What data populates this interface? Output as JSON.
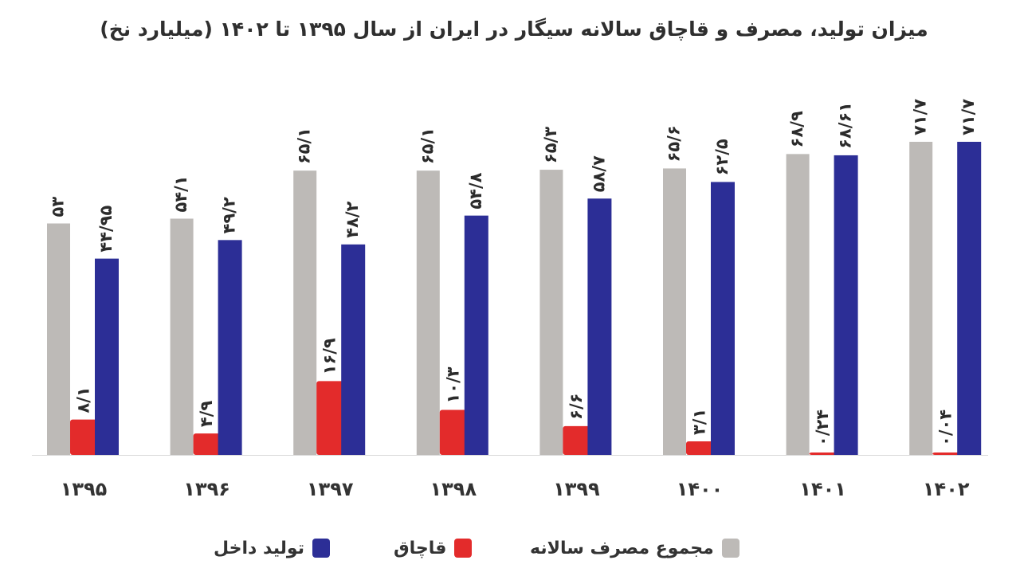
{
  "chart_data": {
    "type": "bar",
    "title": "میزان تولید، مصرف و قاچاق سالانه سیگار در ایران از سال ۱۳۹۵ تا ۱۴۰۲ (میلیارد نخ)",
    "categories": [
      "۱۳۹۵",
      "۱۳۹۶",
      "۱۳۹۷",
      "۱۳۹۸",
      "۱۳۹۹",
      "۱۴۰۰",
      "۱۴۰۱",
      "۱۴۰۲"
    ],
    "series": [
      {
        "name": "مجموع مصرف سالانه",
        "color": "#bdbab7",
        "values": [
          53,
          54.1,
          65.1,
          65.1,
          65.3,
          65.6,
          68.9,
          71.7
        ],
        "labels": [
          "۵۳",
          "۵۴/۱",
          "۶۵/۱",
          "۶۵/۱",
          "۶۵/۳",
          "۶۵/۶",
          "۶۸/۹",
          "۷۱/۷"
        ]
      },
      {
        "name": "قاچاق",
        "color": "#e32b2b",
        "values": [
          8.1,
          4.9,
          16.9,
          10.3,
          6.6,
          3.1,
          0.24,
          0.04
        ],
        "labels": [
          "۸/۱",
          "۴/۹",
          "۱۶/۹",
          "۱۰/۳",
          "۶/۶",
          "۳/۱",
          "۰/۲۴",
          "۰/۰۴"
        ]
      },
      {
        "name": "تولید داخل",
        "color": "#2c2e96",
        "values": [
          44.95,
          49.2,
          48.2,
          54.8,
          58.7,
          62.5,
          68.61,
          71.7
        ],
        "labels": [
          "۴۴/۹۵",
          "۴۹/۲",
          "۴۸/۲",
          "۵۴/۸",
          "۵۸/۷",
          "۶۲/۵",
          "۶۸/۶۱",
          "۷۱/۷"
        ]
      }
    ],
    "ylim": [
      0,
      75
    ],
    "grid": false,
    "legend_position": "bottom"
  }
}
